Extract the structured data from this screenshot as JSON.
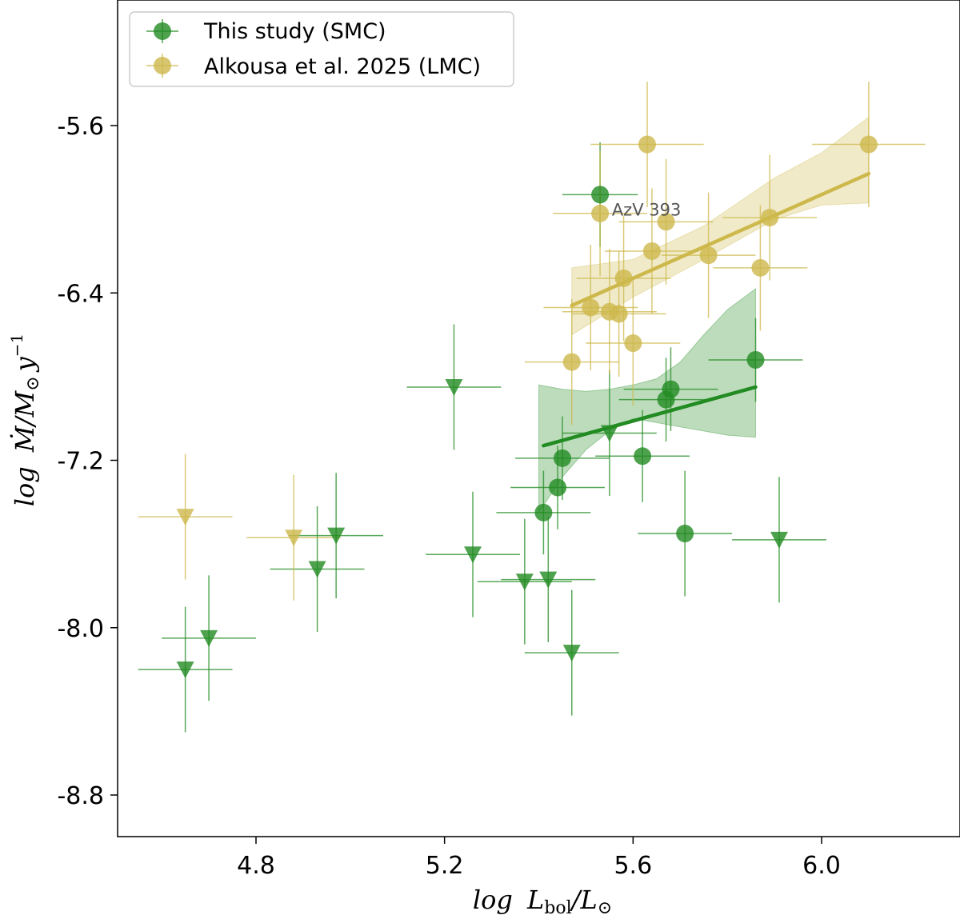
{
  "chart_data": {
    "type": "scatter",
    "title": "",
    "xlabel": "log L_bol/L_⊙",
    "ylabel": "log Ṁ/M_⊙ y^-1",
    "xlim": [
      4.5,
      6.3
    ],
    "ylim": [
      -9.0,
      -5.0
    ],
    "xticks": [
      4.8,
      5.2,
      5.6,
      6.0
    ],
    "yticks": [
      -5.6,
      -6.4,
      -7.2,
      -8.0,
      -8.8
    ],
    "xtick_labels": [
      "4.8",
      "5.2",
      "5.6",
      "6.0"
    ],
    "ytick_labels": [
      "-5.6",
      "-6.4",
      "-7.2",
      "-8.0",
      "-8.8"
    ],
    "grid": false,
    "legend_position": "top-left",
    "colors": {
      "smc": "#228b22",
      "lmc": "#cdb84b"
    },
    "series": [
      {
        "name": "This study (SMC)",
        "color": "#228b22",
        "detections": [
          {
            "x": 5.53,
            "y": -5.93,
            "xerr": 0.08,
            "yerr": 0.25
          },
          {
            "x": 5.41,
            "y": -7.45,
            "xerr": 0.1,
            "yerr": 0.2
          },
          {
            "x": 5.44,
            "y": -7.33,
            "xerr": 0.1,
            "yerr": 0.2
          },
          {
            "x": 5.45,
            "y": -7.19,
            "xerr": 0.1,
            "yerr": 0.2
          },
          {
            "x": 5.62,
            "y": -7.18,
            "xerr": 0.1,
            "yerr": 0.22
          },
          {
            "x": 5.67,
            "y": -6.91,
            "xerr": 0.1,
            "yerr": 0.2
          },
          {
            "x": 5.68,
            "y": -6.86,
            "xerr": 0.1,
            "yerr": 0.2
          },
          {
            "x": 5.71,
            "y": -7.55,
            "xerr": 0.1,
            "yerr": 0.3
          },
          {
            "x": 5.86,
            "y": -6.72,
            "xerr": 0.1,
            "yerr": 0.2
          }
        ],
        "upper_limits": [
          {
            "x": 4.65,
            "y": -8.2,
            "xerr": 0.1,
            "yerr": 0.3
          },
          {
            "x": 4.7,
            "y": -8.05,
            "xerr": 0.1,
            "yerr": 0.3
          },
          {
            "x": 4.93,
            "y": -7.72,
            "xerr": 0.1,
            "yerr": 0.3
          },
          {
            "x": 4.97,
            "y": -7.56,
            "xerr": 0.1,
            "yerr": 0.3
          },
          {
            "x": 5.22,
            "y": -6.85,
            "xerr": 0.1,
            "yerr": 0.3
          },
          {
            "x": 5.26,
            "y": -7.65,
            "xerr": 0.1,
            "yerr": 0.3
          },
          {
            "x": 5.37,
            "y": -7.78,
            "xerr": 0.1,
            "yerr": 0.3
          },
          {
            "x": 5.42,
            "y": -7.77,
            "xerr": 0.1,
            "yerr": 0.3
          },
          {
            "x": 5.47,
            "y": -8.12,
            "xerr": 0.1,
            "yerr": 0.3
          },
          {
            "x": 5.55,
            "y": -7.07,
            "xerr": 0.1,
            "yerr": 0.3
          },
          {
            "x": 5.91,
            "y": -7.58,
            "xerr": 0.1,
            "yerr": 0.3
          }
        ],
        "fit": {
          "x": [
            5.41,
            5.86
          ],
          "y": [
            -7.13,
            -6.85
          ]
        },
        "band": {
          "x": [
            5.4,
            5.45,
            5.5,
            5.55,
            5.6,
            5.65,
            5.7,
            5.75,
            5.8,
            5.86
          ],
          "lower": [
            -7.45,
            -7.28,
            -7.15,
            -7.06,
            -7.0,
            -7.02,
            -7.04,
            -7.06,
            -7.08,
            -7.09
          ],
          "upper": [
            -6.84,
            -6.86,
            -6.87,
            -6.86,
            -6.84,
            -6.81,
            -6.73,
            -6.6,
            -6.48,
            -6.38
          ]
        }
      },
      {
        "name": "Alkousa et al. 2025 (LMC)",
        "color": "#cdb84b",
        "detections": [
          {
            "x": 5.63,
            "y": -5.69,
            "xerr": 0.12,
            "yerr": 0.3
          },
          {
            "x": 6.1,
            "y": -5.69,
            "xerr": 0.12,
            "yerr": 0.3
          },
          {
            "x": 5.53,
            "y": -6.02,
            "xerr": 0.1,
            "yerr": 0.3
          },
          {
            "x": 5.67,
            "y": -6.06,
            "xerr": 0.1,
            "yerr": 0.3
          },
          {
            "x": 5.89,
            "y": -6.04,
            "xerr": 0.1,
            "yerr": 0.3
          },
          {
            "x": 5.64,
            "y": -6.2,
            "xerr": 0.1,
            "yerr": 0.3
          },
          {
            "x": 5.76,
            "y": -6.22,
            "xerr": 0.1,
            "yerr": 0.3
          },
          {
            "x": 5.87,
            "y": -6.28,
            "xerr": 0.1,
            "yerr": 0.3
          },
          {
            "x": 5.58,
            "y": -6.33,
            "xerr": 0.1,
            "yerr": 0.3
          },
          {
            "x": 5.51,
            "y": -6.47,
            "xerr": 0.1,
            "yerr": 0.3
          },
          {
            "x": 5.55,
            "y": -6.49,
            "xerr": 0.1,
            "yerr": 0.3
          },
          {
            "x": 5.57,
            "y": -6.5,
            "xerr": 0.1,
            "yerr": 0.3
          },
          {
            "x": 5.6,
            "y": -6.64,
            "xerr": 0.1,
            "yerr": 0.3
          },
          {
            "x": 5.47,
            "y": -6.73,
            "xerr": 0.1,
            "yerr": 0.3
          }
        ],
        "upper_limits": [
          {
            "x": 4.65,
            "y": -7.47,
            "xerr": 0.1,
            "yerr": 0.3
          },
          {
            "x": 4.88,
            "y": -7.57,
            "xerr": 0.1,
            "yerr": 0.3
          }
        ],
        "fit": {
          "x": [
            5.47,
            6.1
          ],
          "y": [
            -6.46,
            -5.83
          ]
        },
        "band": {
          "x": [
            5.47,
            5.6,
            5.75,
            5.9,
            6.0,
            6.1
          ],
          "lower": [
            -6.6,
            -6.42,
            -6.24,
            -6.05,
            -5.98,
            -5.97
          ],
          "upper": [
            -6.28,
            -6.24,
            -6.08,
            -5.85,
            -5.73,
            -5.56
          ]
        }
      }
    ],
    "annotations": [
      {
        "text": "AzV 393",
        "x": 5.555,
        "y": -6.0
      }
    ]
  }
}
